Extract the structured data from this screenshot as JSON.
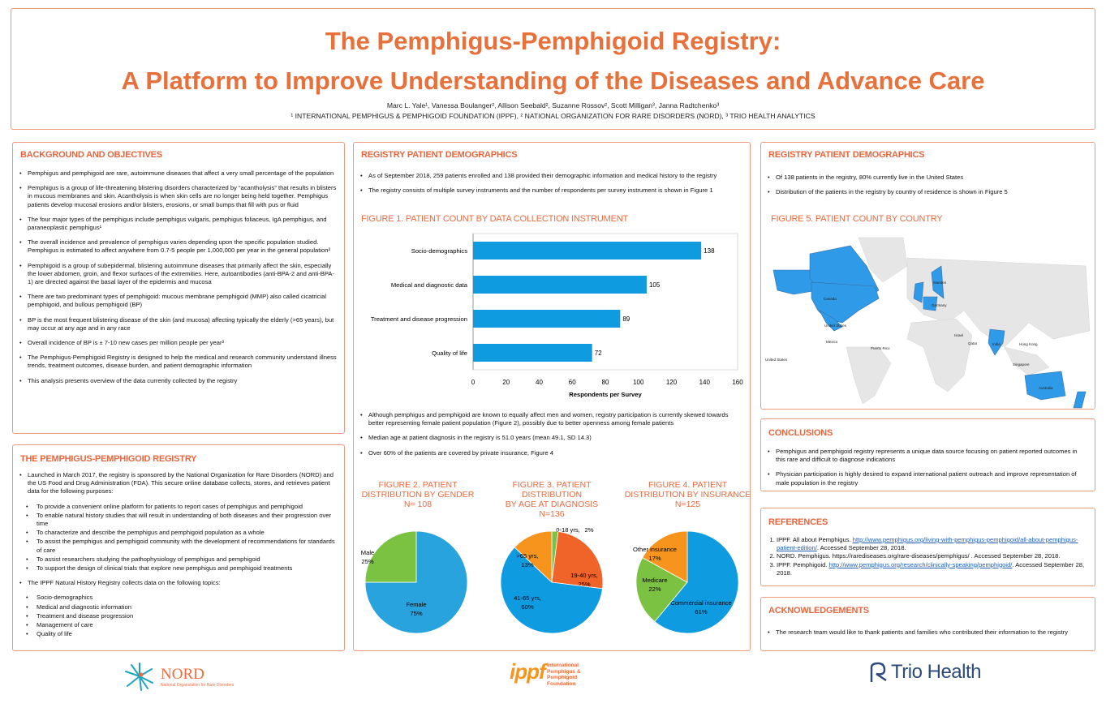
{
  "header": {
    "title_line1": "The Pemphigus-Pemphigoid Registry:",
    "title_line2": "A Platform to Improve Understanding of the Diseases and Advance Care",
    "authors": "Marc L. Yale¹, Vanessa Boulanger², Allison Seebald², Suzanne Rossov², Scott Milligan³, Janna Radtchenko³",
    "affiliations": "¹ INTERNATIONAL PEMPHIGUS & PEMPHIGOID FOUNDATION (IPPF), ² NATIONAL ORGANIZATION FOR RARE DISORDERS (NORD), ³ TRIO HEALTH ANALYTICS"
  },
  "background": {
    "heading": "BACKGROUND AND OBJECTIVES",
    "bullets": [
      "Pemphigus and pemphigoid are rare, autoimmune diseases that affect a very small percentage of the population",
      "Pemphigus is a group of life-threatening blistering disorders characterized by “acantholysis” that results in blisters in mucous membranes and skin. Acantholysis is when skin cells are no longer being held together. Pemphigus patients develop mucosal erosions and/or blisters, erosions, or small bumps that fill with pus or fluid",
      "The four major types of the pemphigus include pemphigus vulgaris, pemphigus foliaceus, IgA pemphigus, and paraneoplastic pemphigus¹",
      "The overall incidence and prevalence of pemphigus varies depending upon the specific population studied. Pemphigus is estimated to affect anywhere from 0.7-5 people per 1,000,000 per year in the general population²",
      "Pemphigoid is a group of subepidermal, blistering autoimmune diseases that primarily affect the skin, especially the lower abdomen, groin, and flexor surfaces of the extremities. Here, autoantibodies (anti-BPA-2 and anti-BPA-1) are directed against the basal layer of the epidermis and mucosa",
      "There are two predominant types of pemphigoid: mucous membrane pemphigoid (MMP) also called cicatricial pemphigoid, and bullous pemphigoid (BP)",
      "BP is the most frequent blistering disease of the skin (and mucosa) affecting typically the elderly (>65 years), but may occur at any age and in any race",
      "Overall incidence of BP is ± 7-10 new cases per million people per year³",
      "The Pemphigus-Pemphigoid Registry is designed to help the medical and research community understand illness trends, treatment outcomes, disease burden, and patient demographic information",
      "This analysis presents overview of the data currently collected by the registry"
    ]
  },
  "registry": {
    "heading": "THE PEMPHIGUS-PEMPHIGOID REGISTRY",
    "intro": "Launched in March 2017, the registry is sponsored by the National Organization for Rare Disorders (NORD) and the US Food and Drug Administration (FDA). This secure online database collects, stores, and retrieves patient data for the following purposes:",
    "purposes": [
      "To provide a convenient online platform for patients to report cases of pemphigus and pemphigoid",
      "To enable natural history studies that will result in understanding of both diseases and their progression over time",
      "To characterize and describe the pemphigus and pemphigoid population as a whole",
      "To assist the pemphigus and pemphigoid community with the development of recommendations for standards of care",
      "To assist researchers studying the pathophysiology of pemphigus and pemphigoid",
      "To support the design of clinical trials that explore new pemphigus and pemphigoid treatments"
    ],
    "topics_intro": "The IPPF Natural History Registry collects data on the following topics:",
    "topics": [
      "Socio-demographics",
      "Medical and diagnostic information",
      "Treatment and disease progression",
      "Management of care",
      "Quality of life"
    ]
  },
  "demographics": {
    "heading": "REGISTRY PATIENT DEMOGRAPHICS",
    "bullets": [
      "As of September 2018, 259 patients enrolled and 138 provided their demographic information and medical history to the registry",
      "The registry consists of multiple survey instruments and the number of respondents per survey instrument is shown in Figure 1"
    ],
    "bullets2": [
      "Although pemphigus and pemphigoid are known to equally affect men and women, registry participation is currently skewed towards better representing female patient population (Figure 2), possibly due to better openness among female patients",
      "Median age at patient diagnosis in the registry is 51.0 years (mean 49.1, SD 14.3)",
      "Over 60% of the patients are covered by private insurance, Figure 4"
    ]
  },
  "demographics2": {
    "heading": "REGISTRY PATIENT DEMOGRAPHICS",
    "bullets": [
      "Of 138 patients in the registry, 80% currently live in the United States",
      "Distribution of the patients in the registry by country of residence is shown in Figure 5"
    ],
    "figure5_title": "FIGURE 5. PATIENT COUNT BY COUNTRY",
    "map_labels": [
      "Canada",
      "United States",
      "Mexico",
      "Puerto Rico",
      "United States",
      "Sweden",
      "Germany",
      "Israel",
      "Qatar",
      "India",
      "Hong Kong",
      "Singapore",
      "Australia"
    ],
    "colors": {
      "highlight": "#2f9be8",
      "land": "#e6e6e6"
    }
  },
  "chart_data": [
    {
      "type": "bar",
      "title": "FIGURE 1. PATIENT COUNT BY DATA COLLECTION INSTRUMENT",
      "categories": [
        "Socio-demographics",
        "Medical and diagnostic data",
        "Treatment and disease progression",
        "Quality of life"
      ],
      "values": [
        138,
        105,
        89,
        72
      ],
      "xlabel": "Respondents per Survey",
      "xlim": [
        0,
        160
      ],
      "ticks": [
        "0",
        "20",
        "40",
        "60",
        "80",
        "100",
        "120",
        "140",
        "160"
      ],
      "color": "#0f9be0"
    },
    {
      "type": "pie",
      "title_lines": [
        "FIGURE 2. PATIENT",
        "DISTRIBUTION BY GENDER",
        "N= 108"
      ],
      "slices": [
        {
          "label": "Female",
          "pct": "75%",
          "value": 75,
          "color": "#29a3de"
        },
        {
          "label": "Male",
          "pct": "25%",
          "value": 25,
          "color": "#7cc242"
        }
      ]
    },
    {
      "type": "pie",
      "title_lines": [
        "FIGURE 3. PATIENT DISTRIBUTION",
        "BY AGE AT DIAGNOSIS",
        "N=136"
      ],
      "slices": [
        {
          "label": "0-18 yrs,",
          "pct": "2%",
          "value": 2,
          "color": "#7cc242"
        },
        {
          "label": "19-40 yrs,",
          "pct": "25%",
          "value": 25,
          "color": "#f0642a"
        },
        {
          "label": "41-65 yrs,",
          "pct": "60%",
          "value": 60,
          "color": "#0f9be0"
        },
        {
          "label": ">65 yrs,",
          "pct": "13%",
          "value": 13,
          "color": "#f7941d"
        }
      ]
    },
    {
      "type": "pie",
      "title_lines": [
        "FIGURE 4. PATIENT",
        "DISTRIBUTION BY INSURANCE",
        "N=125"
      ],
      "slices": [
        {
          "label": "Commercial insurance",
          "pct": "61%",
          "value": 61,
          "color": "#0f9be0"
        },
        {
          "label": "Medicare",
          "pct": "22%",
          "value": 22,
          "color": "#7cc242"
        },
        {
          "label": "Other insurance",
          "pct": "17%",
          "value": 17,
          "color": "#f7941d"
        }
      ]
    }
  ],
  "conclusions": {
    "heading": "CONCLUSIONS",
    "bullets": [
      "Pemphigus and pemphigoid registry represents a unique data source focusing on patient reported outcomes in this rare and difficult to diagnose indications",
      "Physician participation is highly desired to expand international patient outreach and improve representation of male population in the registry"
    ]
  },
  "references": {
    "heading": "REFERENCES",
    "items": [
      {
        "pre": "IPPF. All about Pemphigus. ",
        "link": "http://www.pemphigus.org/living-with-pemphigus-pemphigoid/all-about-pemphigus-patient-edition/",
        "post": ". Accessed September 28, 2018."
      },
      {
        "pre": "NORD. Pemphigus. https://rarediseases.org/rare-diseases/pemphigus/ . Accessed September 28, 2018.",
        "link": "",
        "post": ""
      },
      {
        "pre": "IPPF. Pemphigoid. ",
        "link": "http://www.pemphigus.org/research/clinically-speaking/pemphigoid/",
        "post": ". Accessed September 28, 2018."
      }
    ]
  },
  "acknowledgements": {
    "heading": "ACKNOWLEDGEMENTS",
    "bullets": [
      "The research team would like to thank patients and families who contributed their information to the registry"
    ]
  },
  "logos": {
    "nord": "NORD",
    "nord_sub": "National Organization for Rare Disorders",
    "ippf": "ippf",
    "ippf_sub": "International Pemphigus & Pemphigoid Foundation",
    "trio": "Trio Health"
  }
}
